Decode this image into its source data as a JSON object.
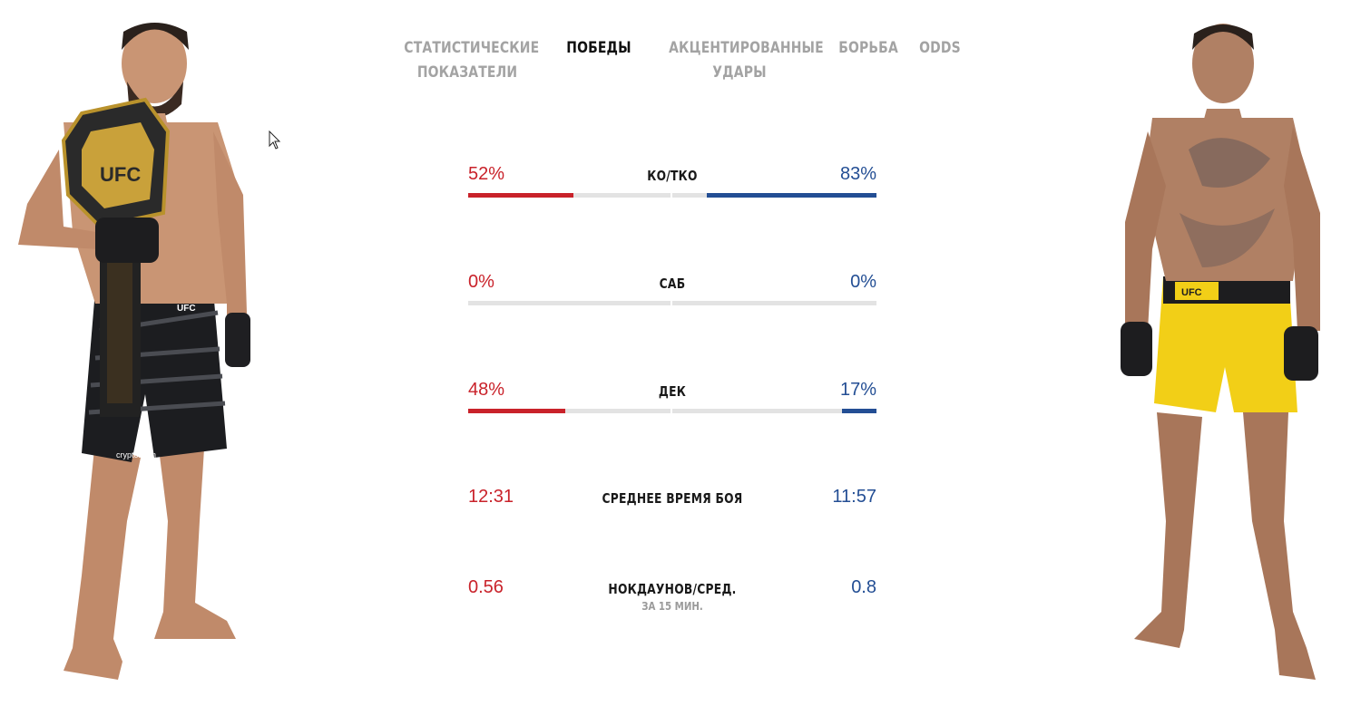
{
  "tabs": [
    {
      "label": "СТАТИСТИЧЕСКИЕ ПОКАЗАТЕЛИ",
      "active": false
    },
    {
      "label": "ПОБЕДЫ",
      "active": true
    },
    {
      "label": "АКЦЕНТИРОВАННЫЕ УДАРЫ",
      "active": false
    },
    {
      "label": "БОРЬБА",
      "active": false
    },
    {
      "label": "ODDS",
      "active": false
    }
  ],
  "tab_lines": {
    "stats": [
      "СТАТИСТИЧЕСКИЕ",
      "ПОКАЗАТЕЛИ"
    ],
    "strikes": [
      "АКЦЕНТИРОВАННЫЕ",
      "УДАРЫ"
    ]
  },
  "stats": [
    {
      "label": "КО/ТКО",
      "red": "52%",
      "blue": "83%",
      "red_pct": 52,
      "blue_pct": 83
    },
    {
      "label": "САБ",
      "red": "0%",
      "blue": "0%",
      "red_pct": 0,
      "blue_pct": 0
    },
    {
      "label": "ДЕК",
      "red": "48%",
      "blue": "17%",
      "red_pct": 48,
      "blue_pct": 17
    },
    {
      "label": "СРЕДНЕЕ ВРЕМЯ БОЯ",
      "red": "12:31",
      "blue": "11:57"
    },
    {
      "label": "НОКДАУНОВ/СРЕД.",
      "sublabel": "ЗА 15 МИН.",
      "red": "0.56",
      "blue": "0.8"
    }
  ],
  "colors": {
    "red_corner": "#c9222a",
    "blue_corner": "#234e94",
    "bar_track": "#e3e3e3"
  },
  "fighters": {
    "left": {
      "shorts_text": "crypto.com",
      "belt_text": "UFC",
      "shorts_brand": "UFC"
    },
    "right": {
      "shorts_brand": "UFC"
    }
  }
}
